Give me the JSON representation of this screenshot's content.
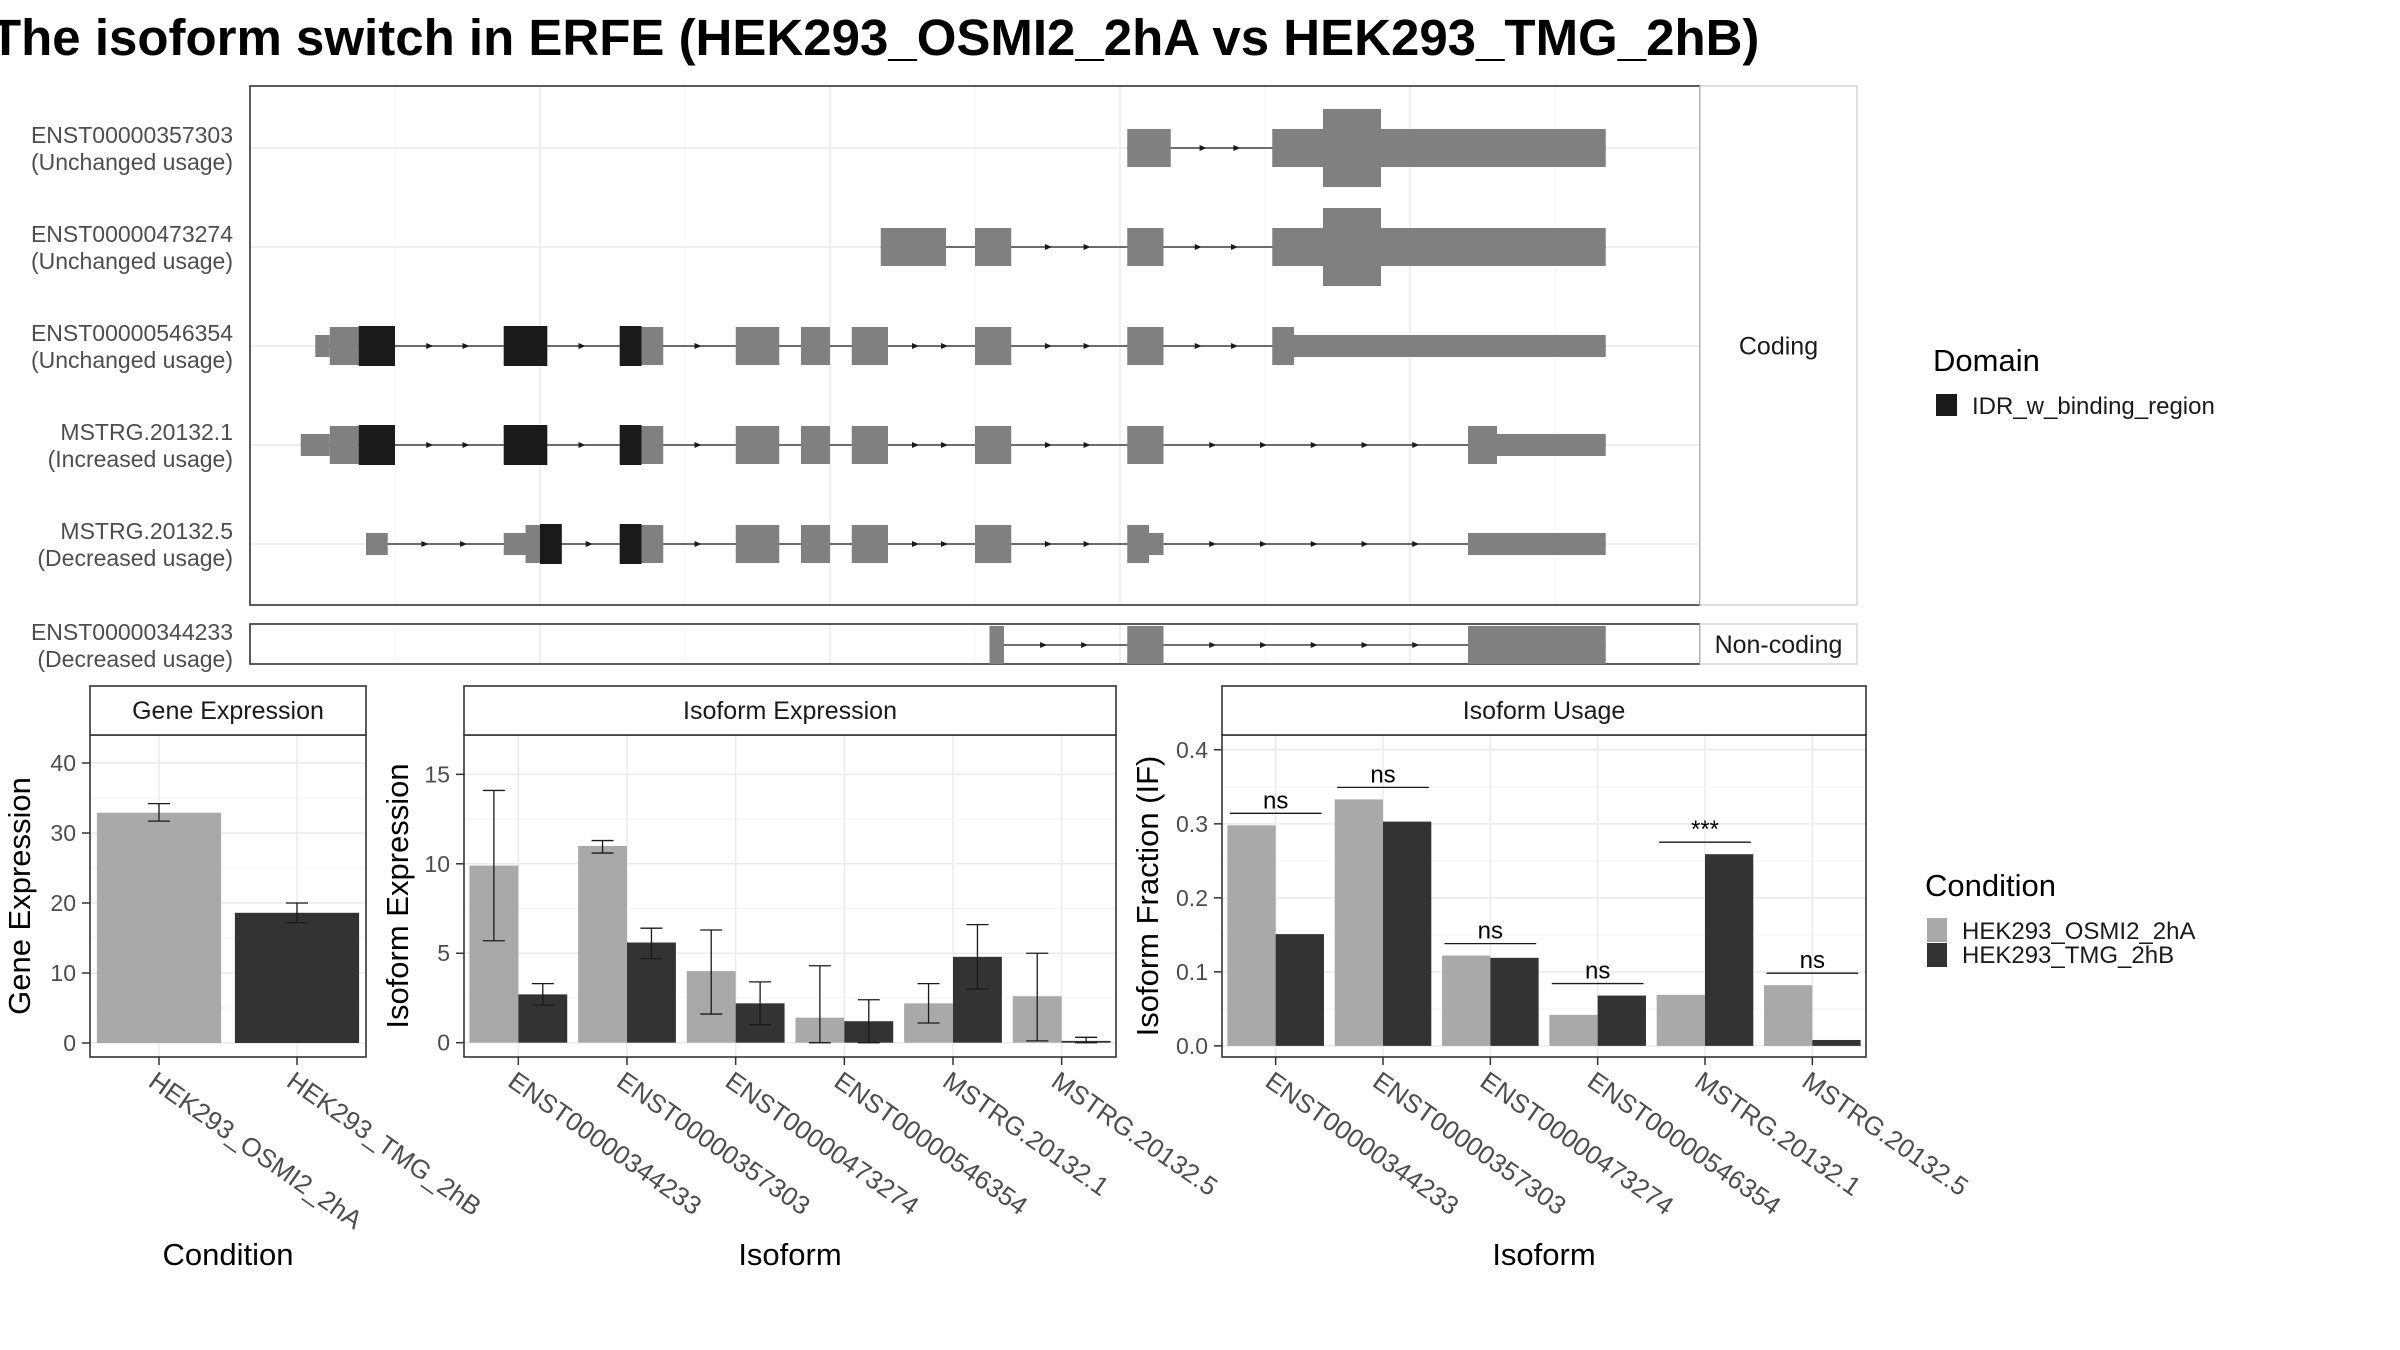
{
  "title": "The isoform switch in ERFE (HEK293_OSMI2_2hA vs HEK293_TMG_2hB)",
  "colors": {
    "cond1": "#a9a9a9",
    "cond2": "#333333",
    "exon": "#808080",
    "domain": "#1a1a1a",
    "grid": "#ebebeb",
    "frame": "#333333"
  },
  "legend_domain": {
    "title": "Domain",
    "items": [
      "IDR_w_binding_region"
    ]
  },
  "legend_condition": {
    "title": "Condition",
    "items": [
      "HEK293_OSMI2_2hA",
      "HEK293_TMG_2hB"
    ]
  },
  "structure": {
    "strips": [
      "Coding",
      "Non-coding"
    ],
    "x_domain": [
      0,
      100
    ],
    "transcripts": [
      {
        "id": "ENST00000357303",
        "usage": "(Unchanged usage)",
        "panel": 0,
        "exons": [
          [
            60.5,
            63.5,
            "n"
          ],
          [
            70.5,
            74,
            "n"
          ],
          [
            74,
            78,
            "w"
          ],
          [
            78,
            93.5,
            "n"
          ]
        ],
        "domains": []
      },
      {
        "id": "ENST00000473274",
        "usage": "(Unchanged usage)",
        "panel": 0,
        "exons": [
          [
            43.5,
            48,
            "n"
          ],
          [
            50,
            52.5,
            "n"
          ],
          [
            60.5,
            63,
            "n"
          ],
          [
            70.5,
            74,
            "n"
          ],
          [
            74,
            78,
            "w"
          ],
          [
            78,
            93.5,
            "n"
          ]
        ],
        "domains": []
      },
      {
        "id": "ENST00000546354",
        "usage": "(Unchanged usage)",
        "panel": 0,
        "exons": [
          [
            4.5,
            5.5,
            "s"
          ],
          [
            5.5,
            7.5,
            "n"
          ],
          [
            7.5,
            10,
            "n"
          ],
          [
            17.5,
            20.5,
            "n"
          ],
          [
            25.5,
            27,
            "n"
          ],
          [
            27,
            28.5,
            "n"
          ],
          [
            33.5,
            36.5,
            "n"
          ],
          [
            38,
            40,
            "n"
          ],
          [
            41.5,
            44,
            "n"
          ],
          [
            50,
            52.5,
            "n"
          ],
          [
            60.5,
            63,
            "n"
          ],
          [
            70.5,
            72,
            "n"
          ],
          [
            72,
            93.5,
            "s"
          ]
        ],
        "domains": [
          [
            7.5,
            10
          ],
          [
            17.5,
            20.5
          ],
          [
            25.5,
            27
          ]
        ]
      },
      {
        "id": "MSTRG.20132.1",
        "usage": "(Increased usage)",
        "panel": 0,
        "exons": [
          [
            3.5,
            5.5,
            "s"
          ],
          [
            5.5,
            7.5,
            "n"
          ],
          [
            7.5,
            10,
            "n"
          ],
          [
            17.5,
            20.5,
            "n"
          ],
          [
            25.5,
            27,
            "n"
          ],
          [
            27,
            28.5,
            "n"
          ],
          [
            33.5,
            36.5,
            "n"
          ],
          [
            38,
            40,
            "n"
          ],
          [
            41.5,
            44,
            "n"
          ],
          [
            50,
            52.5,
            "n"
          ],
          [
            60.5,
            63,
            "n"
          ],
          [
            84,
            86,
            "n"
          ],
          [
            86,
            93.5,
            "s"
          ]
        ],
        "domains": [
          [
            7.5,
            10
          ],
          [
            17.5,
            20.5
          ],
          [
            25.5,
            27
          ]
        ]
      },
      {
        "id": "MSTRG.20132.5",
        "usage": "(Decreased usage)",
        "panel": 0,
        "exons": [
          [
            8,
            9.5,
            "s"
          ],
          [
            17.5,
            19,
            "s"
          ],
          [
            19,
            20,
            "n"
          ],
          [
            20,
            21.5,
            "n"
          ],
          [
            25.5,
            27,
            "n"
          ],
          [
            27,
            28.5,
            "n"
          ],
          [
            33.5,
            36.5,
            "n"
          ],
          [
            38,
            40,
            "n"
          ],
          [
            41.5,
            44,
            "n"
          ],
          [
            50,
            52.5,
            "n"
          ],
          [
            60.5,
            62,
            "n"
          ],
          [
            62,
            63,
            "s"
          ],
          [
            84,
            93.5,
            "s"
          ]
        ],
        "domains": [
          [
            20,
            21.5
          ],
          [
            25.5,
            27
          ]
        ]
      },
      {
        "id": "ENST00000344233",
        "usage": "(Decreased usage)",
        "panel": 1,
        "exons": [
          [
            51,
            52,
            "n"
          ],
          [
            60.5,
            63,
            "n"
          ],
          [
            84,
            93.5,
            "n"
          ]
        ],
        "domains": []
      }
    ]
  },
  "chart_data": [
    {
      "type": "bar",
      "title": "Gene Expression",
      "xlabel": "Condition",
      "ylabel": "Gene Expression",
      "ylim": [
        -2,
        44
      ],
      "yticks": [
        0,
        10,
        20,
        30,
        40
      ],
      "categories": [
        "HEK293_OSMI2_2hA",
        "HEK293_TMG_2hB"
      ],
      "series": [
        {
          "values": [
            32.9,
            18.6
          ],
          "err_low": [
            31.7,
            17.2
          ],
          "err_high": [
            34.2,
            20.0
          ],
          "color_idx": [
            0,
            1
          ]
        }
      ]
    },
    {
      "type": "bar",
      "title": "Isoform Expression",
      "xlabel": "Isoform",
      "ylabel": "Isoform Expression",
      "ylim": [
        -0.8,
        17.2
      ],
      "yticks": [
        0,
        5,
        10,
        15
      ],
      "categories": [
        "ENST00000344233",
        "ENST00000357303",
        "ENST00000473274",
        "ENST00000546354",
        "MSTRG.20132.1",
        "MSTRG.20132.5"
      ],
      "series": [
        {
          "name": "HEK293_OSMI2_2hA",
          "values": [
            9.9,
            11.0,
            4.0,
            1.4,
            2.2,
            2.6
          ],
          "err_low": [
            5.7,
            10.6,
            1.6,
            0.0,
            1.1,
            0.1
          ],
          "err_high": [
            14.1,
            11.3,
            6.3,
            4.3,
            3.3,
            5.0
          ]
        },
        {
          "name": "HEK293_TMG_2hB",
          "values": [
            2.7,
            5.6,
            2.2,
            1.2,
            4.8,
            0.1
          ],
          "err_low": [
            2.1,
            4.7,
            1.0,
            0.0,
            3.0,
            0.0
          ],
          "err_high": [
            3.3,
            6.4,
            3.4,
            2.4,
            6.6,
            0.3
          ]
        }
      ]
    },
    {
      "type": "bar",
      "title": "Isoform Usage",
      "xlabel": "Isoform",
      "ylabel": "Isoform Fraction (IF)",
      "ylim": [
        -0.015,
        0.42
      ],
      "yticks": [
        0.0,
        0.1,
        0.2,
        0.3,
        0.4
      ],
      "ytick_labels": [
        "0.0",
        "0.1",
        "0.2",
        "0.3",
        "0.4"
      ],
      "categories": [
        "ENST00000344233",
        "ENST00000357303",
        "ENST00000473274",
        "ENST00000546354",
        "MSTRG.20132.1",
        "MSTRG.20132.5"
      ],
      "series": [
        {
          "name": "HEK293_OSMI2_2hA",
          "values": [
            0.298,
            0.333,
            0.122,
            0.042,
            0.069,
            0.082
          ]
        },
        {
          "name": "HEK293_TMG_2hB",
          "values": [
            0.151,
            0.303,
            0.119,
            0.068,
            0.259,
            0.008
          ]
        }
      ],
      "annotations": [
        "ns",
        "ns",
        "ns",
        "ns",
        "***",
        "ns"
      ]
    }
  ]
}
